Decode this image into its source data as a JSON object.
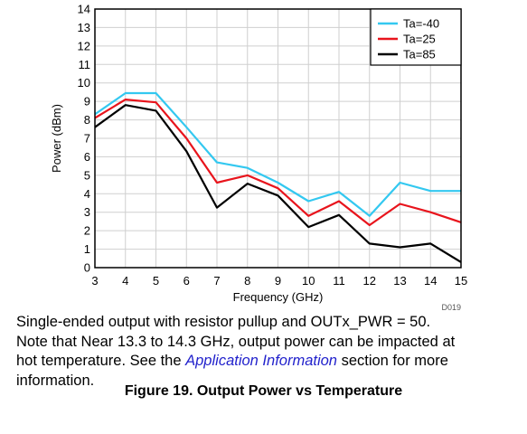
{
  "chart_data": {
    "type": "line",
    "xlabel": "Frequency (GHz)",
    "ylabel": "Power (dBm)",
    "xlim": [
      3,
      15
    ],
    "ylim": [
      0,
      14
    ],
    "x_ticks": [
      3,
      4,
      5,
      6,
      7,
      8,
      9,
      10,
      11,
      12,
      13,
      14,
      15
    ],
    "y_ticks": [
      0,
      1,
      2,
      3,
      4,
      5,
      6,
      7,
      8,
      9,
      10,
      11,
      12,
      13,
      14
    ],
    "grid": true,
    "legend_position": "top-right",
    "figure_code": "D019",
    "x": [
      3,
      4,
      5,
      6,
      7,
      8,
      9,
      10,
      11,
      12,
      13,
      14,
      15
    ],
    "series": [
      {
        "name": "Ta=-40",
        "color": "#33c8f0",
        "values": [
          8.3,
          9.45,
          9.45,
          7.6,
          5.7,
          5.4,
          4.6,
          3.6,
          4.1,
          2.8,
          4.6,
          4.15,
          4.15
        ]
      },
      {
        "name": "Ta=25",
        "color": "#e8141c",
        "values": [
          8.1,
          9.1,
          8.95,
          7.0,
          4.6,
          5.0,
          4.3,
          2.8,
          3.6,
          2.3,
          3.45,
          3.0,
          2.45
        ]
      },
      {
        "name": "Ta=85",
        "color": "#000000",
        "values": [
          7.6,
          8.8,
          8.5,
          6.3,
          3.25,
          4.55,
          3.9,
          2.2,
          2.85,
          1.3,
          1.1,
          1.3,
          0.3
        ]
      }
    ]
  },
  "caption": {
    "line1": "Single-ended output with resistor pullup and OUTx_PWR = 50.",
    "line2": "Note that Near 13.3 to 14.3 GHz, output power can be impacted at",
    "line3_before": "hot temperature. See the ",
    "line3_link": "Application Information",
    "line3_after": " section for more",
    "line4": "information."
  },
  "figure_title": "Figure 19. Output Power vs Temperature"
}
